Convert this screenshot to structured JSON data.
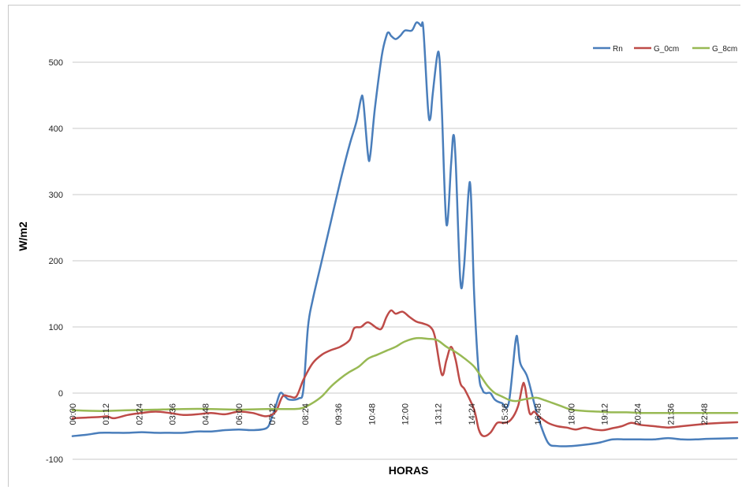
{
  "chart_data": {
    "type": "line",
    "xlabel": "HORAS",
    "ylabel": "W/m2",
    "ylim": [
      -100,
      560
    ],
    "yticks": [
      -100,
      0,
      100,
      200,
      300,
      400,
      500
    ],
    "x_tick_labels": [
      "00:00",
      "01:12",
      "02:24",
      "03:36",
      "04:48",
      "06:00",
      "07:12",
      "08:24",
      "09:36",
      "10:48",
      "12:00",
      "13:12",
      "14:24",
      "15:36",
      "16:48",
      "18:00",
      "19:12",
      "20:24",
      "21:36",
      "22:48"
    ],
    "x_tick_minutes": [
      0,
      72,
      144,
      216,
      288,
      360,
      432,
      504,
      576,
      648,
      720,
      792,
      864,
      936,
      1008,
      1080,
      1152,
      1224,
      1296,
      1368
    ],
    "xlim_minutes": [
      0,
      1440
    ],
    "grid": "horizontal",
    "legend_position": "top-right",
    "series": [
      {
        "name": "Rn",
        "color": "#4a7ebb",
        "points": [
          [
            0,
            -65
          ],
          [
            30,
            -63
          ],
          [
            60,
            -60
          ],
          [
            90,
            -60
          ],
          [
            120,
            -60
          ],
          [
            150,
            -59
          ],
          [
            180,
            -60
          ],
          [
            210,
            -60
          ],
          [
            240,
            -60
          ],
          [
            270,
            -58
          ],
          [
            300,
            -58
          ],
          [
            330,
            -56
          ],
          [
            360,
            -55
          ],
          [
            390,
            -56
          ],
          [
            420,
            -53
          ],
          [
            430,
            -40
          ],
          [
            440,
            -20
          ],
          [
            450,
            0
          ],
          [
            460,
            -5
          ],
          [
            470,
            -10
          ],
          [
            490,
            -8
          ],
          [
            500,
            5
          ],
          [
            510,
            100
          ],
          [
            520,
            140
          ],
          [
            540,
            200
          ],
          [
            560,
            260
          ],
          [
            580,
            320
          ],
          [
            600,
            375
          ],
          [
            615,
            410
          ],
          [
            625,
            445
          ],
          [
            630,
            440
          ],
          [
            640,
            360
          ],
          [
            645,
            360
          ],
          [
            655,
            430
          ],
          [
            670,
            510
          ],
          [
            680,
            540
          ],
          [
            685,
            545
          ],
          [
            690,
            540
          ],
          [
            700,
            535
          ],
          [
            710,
            540
          ],
          [
            720,
            548
          ],
          [
            735,
            548
          ],
          [
            745,
            560
          ],
          [
            755,
            555
          ],
          [
            760,
            550
          ],
          [
            770,
            430
          ],
          [
            775,
            415
          ],
          [
            780,
            450
          ],
          [
            790,
            510
          ],
          [
            795,
            505
          ],
          [
            800,
            430
          ],
          [
            810,
            255
          ],
          [
            820,
            345
          ],
          [
            825,
            390
          ],
          [
            830,
            350
          ],
          [
            840,
            170
          ],
          [
            848,
            190
          ],
          [
            858,
            305
          ],
          [
            863,
            300
          ],
          [
            870,
            150
          ],
          [
            880,
            30
          ],
          [
            888,
            5
          ],
          [
            895,
            0
          ],
          [
            905,
            0
          ],
          [
            915,
            -10
          ],
          [
            930,
            -15
          ],
          [
            945,
            -15
          ],
          [
            960,
            80
          ],
          [
            965,
            75
          ],
          [
            970,
            45
          ],
          [
            985,
            25
          ],
          [
            1000,
            -15
          ],
          [
            1010,
            -40
          ],
          [
            1030,
            -75
          ],
          [
            1050,
            -80
          ],
          [
            1080,
            -80
          ],
          [
            1110,
            -78
          ],
          [
            1140,
            -75
          ],
          [
            1170,
            -70
          ],
          [
            1200,
            -70
          ],
          [
            1230,
            -70
          ],
          [
            1260,
            -70
          ],
          [
            1290,
            -68
          ],
          [
            1320,
            -70
          ],
          [
            1350,
            -70
          ],
          [
            1380,
            -69
          ],
          [
            1440,
            -68
          ]
        ]
      },
      {
        "name": "G_0cm",
        "color": "#be4b48",
        "points": [
          [
            0,
            -38
          ],
          [
            30,
            -37
          ],
          [
            60,
            -36
          ],
          [
            75,
            -35
          ],
          [
            90,
            -38
          ],
          [
            120,
            -33
          ],
          [
            150,
            -30
          ],
          [
            180,
            -28
          ],
          [
            210,
            -30
          ],
          [
            240,
            -33
          ],
          [
            270,
            -32
          ],
          [
            300,
            -30
          ],
          [
            330,
            -32
          ],
          [
            360,
            -28
          ],
          [
            390,
            -30
          ],
          [
            420,
            -35
          ],
          [
            440,
            -28
          ],
          [
            455,
            -5
          ],
          [
            470,
            -5
          ],
          [
            485,
            -5
          ],
          [
            500,
            20
          ],
          [
            520,
            45
          ],
          [
            540,
            58
          ],
          [
            560,
            65
          ],
          [
            580,
            70
          ],
          [
            600,
            80
          ],
          [
            610,
            98
          ],
          [
            625,
            100
          ],
          [
            640,
            107
          ],
          [
            660,
            98
          ],
          [
            670,
            98
          ],
          [
            680,
            115
          ],
          [
            690,
            125
          ],
          [
            700,
            120
          ],
          [
            715,
            123
          ],
          [
            730,
            115
          ],
          [
            745,
            108
          ],
          [
            760,
            105
          ],
          [
            775,
            100
          ],
          [
            785,
            85
          ],
          [
            800,
            28
          ],
          [
            810,
            50
          ],
          [
            820,
            70
          ],
          [
            830,
            50
          ],
          [
            840,
            15
          ],
          [
            850,
            5
          ],
          [
            870,
            -25
          ],
          [
            880,
            -55
          ],
          [
            890,
            -65
          ],
          [
            905,
            -60
          ],
          [
            920,
            -45
          ],
          [
            935,
            -45
          ],
          [
            950,
            -40
          ],
          [
            965,
            -20
          ],
          [
            975,
            12
          ],
          [
            980,
            10
          ],
          [
            990,
            -30
          ],
          [
            1000,
            -28
          ],
          [
            1010,
            -35
          ],
          [
            1030,
            -45
          ],
          [
            1050,
            -50
          ],
          [
            1070,
            -52
          ],
          [
            1090,
            -55
          ],
          [
            1110,
            -52
          ],
          [
            1130,
            -55
          ],
          [
            1150,
            -56
          ],
          [
            1170,
            -53
          ],
          [
            1190,
            -50
          ],
          [
            1210,
            -45
          ],
          [
            1230,
            -48
          ],
          [
            1260,
            -50
          ],
          [
            1290,
            -52
          ],
          [
            1320,
            -50
          ],
          [
            1350,
            -48
          ],
          [
            1380,
            -46
          ],
          [
            1440,
            -44
          ]
        ]
      },
      {
        "name": "G_8cm",
        "color": "#98b954",
        "points": [
          [
            0,
            -26
          ],
          [
            60,
            -27
          ],
          [
            120,
            -26
          ],
          [
            180,
            -25
          ],
          [
            240,
            -24
          ],
          [
            300,
            -24
          ],
          [
            360,
            -25
          ],
          [
            420,
            -24
          ],
          [
            480,
            -24
          ],
          [
            500,
            -22
          ],
          [
            520,
            -15
          ],
          [
            540,
            -5
          ],
          [
            560,
            10
          ],
          [
            580,
            22
          ],
          [
            600,
            32
          ],
          [
            620,
            40
          ],
          [
            640,
            52
          ],
          [
            660,
            58
          ],
          [
            680,
            64
          ],
          [
            700,
            70
          ],
          [
            720,
            78
          ],
          [
            745,
            83
          ],
          [
            770,
            82
          ],
          [
            790,
            80
          ],
          [
            810,
            70
          ],
          [
            830,
            62
          ],
          [
            850,
            52
          ],
          [
            870,
            40
          ],
          [
            885,
            25
          ],
          [
            900,
            10
          ],
          [
            915,
            0
          ],
          [
            930,
            -5
          ],
          [
            945,
            -10
          ],
          [
            960,
            -12
          ],
          [
            975,
            -10
          ],
          [
            990,
            -8
          ],
          [
            1005,
            -7
          ],
          [
            1020,
            -10
          ],
          [
            1040,
            -15
          ],
          [
            1060,
            -20
          ],
          [
            1080,
            -25
          ],
          [
            1110,
            -27
          ],
          [
            1140,
            -28
          ],
          [
            1170,
            -29
          ],
          [
            1200,
            -29
          ],
          [
            1230,
            -30
          ],
          [
            1260,
            -30
          ],
          [
            1290,
            -30
          ],
          [
            1320,
            -30
          ],
          [
            1350,
            -30
          ],
          [
            1380,
            -30
          ],
          [
            1440,
            -30
          ]
        ]
      }
    ]
  }
}
